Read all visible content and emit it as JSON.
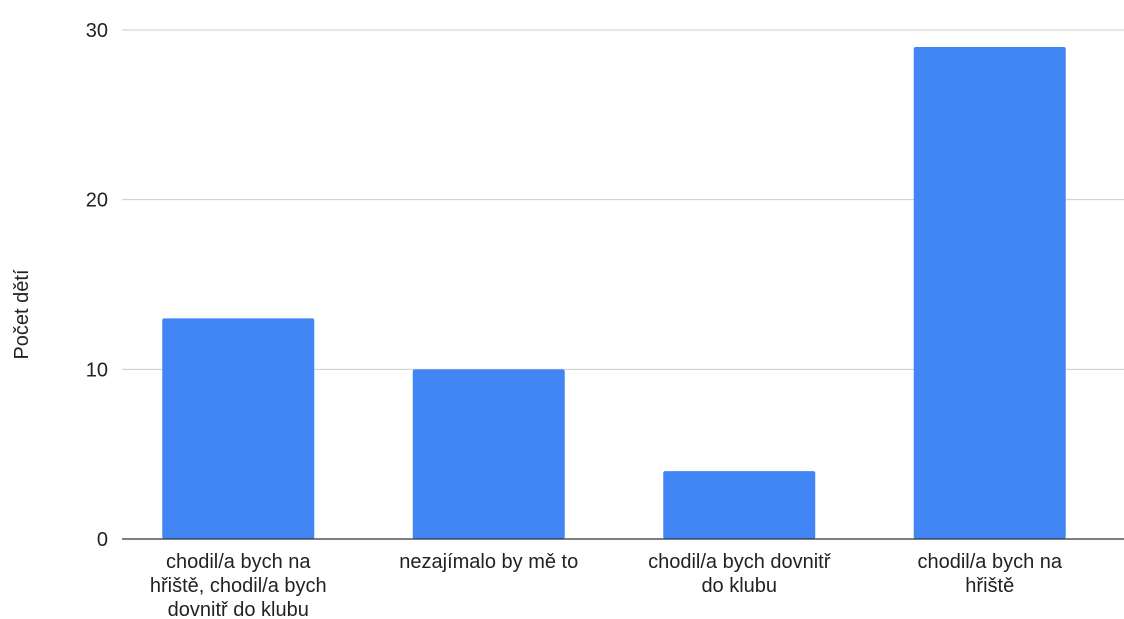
{
  "chart_data": {
    "type": "bar",
    "categories": [
      "chodil/a bych na hřiště, chodil/a bych dovnitř do klubu",
      "nezajímalo by mě to",
      "chodil/a bych dovnitř do klubu",
      "chodil/a bych na hřiště"
    ],
    "category_label_lines": [
      [
        "chodil/a bych na",
        "hřiště, chodil/a bych",
        "dovnitř do klubu"
      ],
      [
        "nezajímalo by mě to"
      ],
      [
        "chodil/a bych dovnitř",
        "do klubu"
      ],
      [
        "chodil/a bych na",
        "hřiště"
      ]
    ],
    "values": [
      13,
      10,
      4,
      29
    ],
    "title": "",
    "xlabel": "",
    "ylabel": "Počet dětí",
    "ylim": [
      0,
      30
    ],
    "yticks": [
      0,
      10,
      20,
      30
    ],
    "grid": true,
    "legend": "none",
    "colors": {
      "bar": "#4285f4",
      "grid": "#cccccc",
      "baseline": "#333333",
      "text": "#222222"
    }
  }
}
